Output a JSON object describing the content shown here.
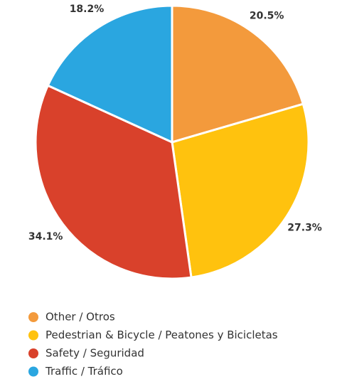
{
  "chart_data": {
    "type": "pie",
    "categories": [
      "Other / Otros",
      "Pedestrian & Bicycle / Peatones y Bicicletas",
      "Safety / Seguridad",
      "Traffic / Tráfico"
    ],
    "values": [
      20.5,
      27.3,
      34.1,
      18.2
    ],
    "value_labels": [
      "20.5%",
      "27.3%",
      "34.1%",
      "18.2%"
    ],
    "colors": [
      "#f39a3c",
      "#ffc20e",
      "#d9412b",
      "#2aa6e0"
    ],
    "legend": "bottom-left"
  }
}
